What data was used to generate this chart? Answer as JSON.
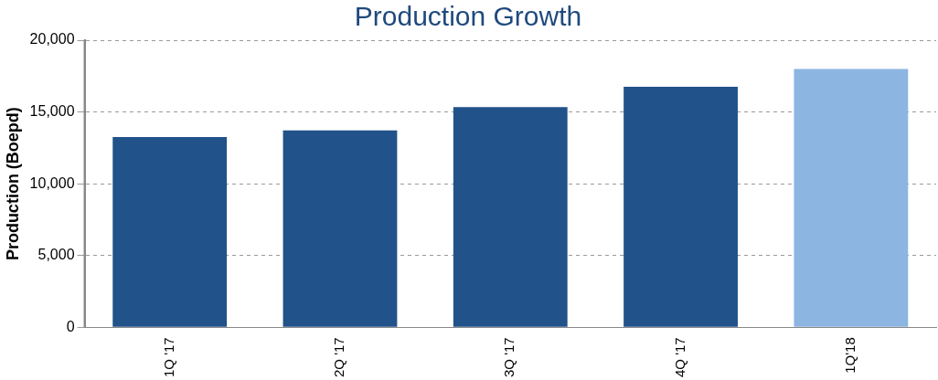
{
  "chart_data": {
    "type": "bar",
    "title": "Production Growth",
    "ylabel": "Production (Boepd)",
    "categories": [
      "1Q '17",
      "2Q '17",
      "3Q '17",
      "4Q '17",
      "1Q'18"
    ],
    "values": [
      13250,
      13720,
      15340,
      16750,
      18000
    ],
    "colors": [
      "#215289",
      "#215289",
      "#215289",
      "#215289",
      "#8db5e2"
    ],
    "ylim": [
      0,
      20000
    ],
    "yticks": [
      {
        "value": 0,
        "label": "0"
      },
      {
        "value": 5000,
        "label": "5,000"
      },
      {
        "value": 10000,
        "label": "10,000"
      },
      {
        "value": 15000,
        "label": "15,000"
      },
      {
        "value": 20000,
        "label": "20,000"
      }
    ],
    "grid": "y",
    "legend": false
  }
}
